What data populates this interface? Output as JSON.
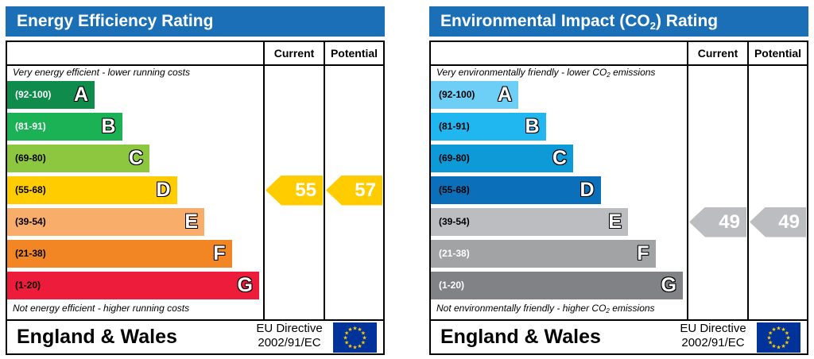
{
  "chart_data": [
    {
      "type": "bar",
      "title": "Energy Efficiency Rating",
      "columns": [
        "Current",
        "Potential"
      ],
      "top_note": "Very energy efficient - lower running costs",
      "bottom_note": "Not energy efficient - higher running costs",
      "bands": [
        {
          "range": "(92-100)",
          "letter": "A",
          "color": "#0f8b4b",
          "range_color": "#ffffff"
        },
        {
          "range": "(81-91)",
          "letter": "B",
          "color": "#1bb256",
          "range_color": "#ffffff"
        },
        {
          "range": "(69-80)",
          "letter": "C",
          "color": "#8dc63f",
          "range_color": "#000000"
        },
        {
          "range": "(55-68)",
          "letter": "D",
          "color": "#ffcc00",
          "range_color": "#000000"
        },
        {
          "range": "(39-54)",
          "letter": "E",
          "color": "#f9ad6b",
          "range_color": "#000000"
        },
        {
          "range": "(21-38)",
          "letter": "F",
          "color": "#f28524",
          "range_color": "#000000"
        },
        {
          "range": "(1-20)",
          "letter": "G",
          "color": "#ec1c3a",
          "range_color": "#000000"
        }
      ],
      "current": {
        "value": 55,
        "band": "D",
        "color": "#ffcc00"
      },
      "potential": {
        "value": 57,
        "band": "D",
        "color": "#ffcc00"
      },
      "footer": {
        "region": "England & Wales",
        "directive_line1": "EU Directive",
        "directive_line2": "2002/91/EC"
      }
    },
    {
      "type": "bar",
      "title_parts": [
        "Environmental Impact (CO",
        "2",
        ") Rating"
      ],
      "columns": [
        "Current",
        "Potential"
      ],
      "top_note_parts": [
        "Very environmentally friendly - lower CO",
        "2",
        " emissions"
      ],
      "bottom_note_parts": [
        "Not environmentally friendly - higher CO",
        "2",
        " emissions"
      ],
      "bands": [
        {
          "range": "(92-100)",
          "letter": "A",
          "color": "#6dcff6",
          "range_color": "#000000"
        },
        {
          "range": "(81-91)",
          "letter": "B",
          "color": "#20b6f0",
          "range_color": "#000000"
        },
        {
          "range": "(69-80)",
          "letter": "C",
          "color": "#0d9ad6",
          "range_color": "#000000"
        },
        {
          "range": "(55-68)",
          "letter": "D",
          "color": "#0b70b9",
          "range_color": "#000000"
        },
        {
          "range": "(39-54)",
          "letter": "E",
          "color": "#bcbdc0",
          "range_color": "#000000"
        },
        {
          "range": "(21-38)",
          "letter": "F",
          "color": "#a2a3a5",
          "range_color": "#ffffff"
        },
        {
          "range": "(1-20)",
          "letter": "G",
          "color": "#818285",
          "range_color": "#ffffff"
        }
      ],
      "current": {
        "value": 49,
        "band": "E",
        "color": "#bcbdc0"
      },
      "potential": {
        "value": 49,
        "band": "E",
        "color": "#bcbdc0"
      },
      "footer": {
        "region": "England & Wales",
        "directive_line1": "EU Directive",
        "directive_line2": "2002/91/EC"
      }
    }
  ]
}
